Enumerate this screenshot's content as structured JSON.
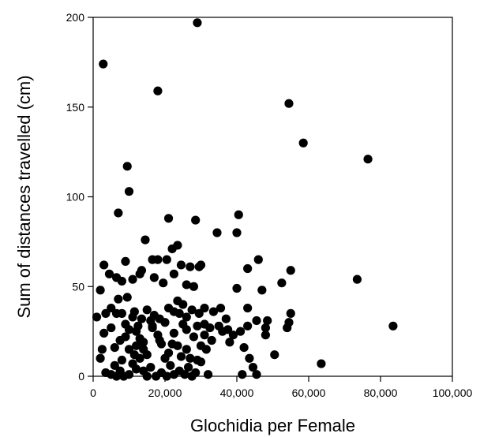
{
  "chart_data": {
    "type": "scatter",
    "title": "",
    "xlabel": "Glochidia per Female",
    "ylabel": "Sum of distances travelled (cm)",
    "xlim": [
      0,
      100000
    ],
    "ylim": [
      0,
      200
    ],
    "x_ticks": [
      0,
      20000,
      40000,
      60000,
      80000,
      100000
    ],
    "x_tick_labels": [
      "0",
      "20,000",
      "40,000",
      "60,000",
      "80,000",
      "100,000"
    ],
    "y_ticks": [
      0,
      50,
      100,
      150,
      200
    ],
    "y_tick_labels": [
      "0",
      "50",
      "100",
      "150",
      "200"
    ],
    "grid": false,
    "legend": "none",
    "marker_color": "#000000",
    "points": [
      [
        2800,
        174
      ],
      [
        29000,
        197
      ],
      [
        18000,
        159
      ],
      [
        54500,
        152
      ],
      [
        58500,
        130
      ],
      [
        76500,
        121
      ],
      [
        9500,
        117
      ],
      [
        10000,
        103
      ],
      [
        7000,
        91
      ],
      [
        21000,
        88
      ],
      [
        28500,
        87
      ],
      [
        40500,
        90
      ],
      [
        40000,
        80
      ],
      [
        34500,
        80
      ],
      [
        14500,
        76
      ],
      [
        23500,
        73
      ],
      [
        22000,
        71
      ],
      [
        20500,
        65
      ],
      [
        18000,
        65
      ],
      [
        16500,
        65
      ],
      [
        24500,
        62
      ],
      [
        27000,
        61
      ],
      [
        30000,
        62
      ],
      [
        29500,
        61
      ],
      [
        13500,
        59
      ],
      [
        13000,
        57
      ],
      [
        17000,
        55
      ],
      [
        22500,
        57
      ],
      [
        19500,
        52
      ],
      [
        26000,
        51
      ],
      [
        28000,
        50
      ],
      [
        3000,
        62
      ],
      [
        2000,
        48
      ],
      [
        4500,
        57
      ],
      [
        6500,
        55
      ],
      [
        8000,
        53
      ],
      [
        9000,
        64
      ],
      [
        11000,
        54
      ],
      [
        9500,
        44
      ],
      [
        7000,
        43
      ],
      [
        5000,
        38
      ],
      [
        3500,
        35
      ],
      [
        1000,
        33
      ],
      [
        6500,
        35
      ],
      [
        8000,
        35
      ],
      [
        11500,
        36
      ],
      [
        11000,
        33
      ],
      [
        13500,
        32
      ],
      [
        15000,
        37
      ],
      [
        17000,
        34
      ],
      [
        18500,
        32
      ],
      [
        16500,
        28
      ],
      [
        21000,
        38
      ],
      [
        22500,
        36
      ],
      [
        24000,
        35
      ],
      [
        26000,
        33
      ],
      [
        25000,
        40
      ],
      [
        23500,
        42
      ],
      [
        27500,
        37
      ],
      [
        29500,
        35
      ],
      [
        31000,
        38
      ],
      [
        33500,
        36
      ],
      [
        35500,
        38
      ],
      [
        37000,
        32
      ],
      [
        39000,
        23
      ],
      [
        40000,
        49
      ],
      [
        43000,
        60
      ],
      [
        46000,
        65
      ],
      [
        47000,
        48
      ],
      [
        52500,
        52
      ],
      [
        55000,
        59
      ],
      [
        55000,
        35
      ],
      [
        54500,
        30
      ],
      [
        54000,
        27
      ],
      [
        43000,
        38
      ],
      [
        45500,
        31
      ],
      [
        48500,
        31
      ],
      [
        48000,
        27
      ],
      [
        48000,
        23
      ],
      [
        43000,
        28
      ],
      [
        42000,
        16
      ],
      [
        43500,
        10
      ],
      [
        44500,
        5
      ],
      [
        41500,
        1
      ],
      [
        45500,
        1
      ],
      [
        41000,
        25
      ],
      [
        38000,
        19
      ],
      [
        36000,
        25
      ],
      [
        32500,
        27
      ],
      [
        31000,
        23
      ],
      [
        30000,
        17
      ],
      [
        31500,
        15
      ],
      [
        29000,
        9
      ],
      [
        27000,
        10
      ],
      [
        26000,
        15
      ],
      [
        24500,
        11
      ],
      [
        23500,
        17
      ],
      [
        22000,
        18
      ],
      [
        21000,
        13
      ],
      [
        20000,
        10
      ],
      [
        19000,
        18
      ],
      [
        18000,
        23
      ],
      [
        16500,
        27
      ],
      [
        15000,
        12
      ],
      [
        14000,
        19
      ],
      [
        13000,
        21
      ],
      [
        12000,
        25
      ],
      [
        10000,
        26
      ],
      [
        9000,
        22
      ],
      [
        7500,
        20
      ],
      [
        6000,
        16
      ],
      [
        5000,
        27
      ],
      [
        3000,
        24
      ],
      [
        2500,
        15
      ],
      [
        2000,
        10
      ],
      [
        3500,
        2
      ],
      [
        5000,
        1
      ],
      [
        6500,
        0
      ],
      [
        7500,
        3
      ],
      [
        8500,
        0
      ],
      [
        10000,
        1
      ],
      [
        11000,
        7
      ],
      [
        12000,
        4
      ],
      [
        13000,
        10
      ],
      [
        14000,
        3
      ],
      [
        15000,
        0
      ],
      [
        16000,
        5
      ],
      [
        17500,
        0
      ],
      [
        19000,
        2
      ],
      [
        20500,
        0
      ],
      [
        21500,
        6
      ],
      [
        22500,
        1
      ],
      [
        24000,
        3
      ],
      [
        25500,
        1
      ],
      [
        26500,
        5
      ],
      [
        27500,
        0
      ],
      [
        28500,
        2
      ],
      [
        30000,
        8
      ],
      [
        32000,
        1
      ],
      [
        25000,
        29
      ],
      [
        20000,
        30
      ],
      [
        16000,
        31
      ],
      [
        12500,
        28
      ],
      [
        9000,
        29
      ],
      [
        26000,
        26
      ],
      [
        28000,
        22
      ],
      [
        31000,
        29
      ],
      [
        35000,
        28
      ],
      [
        37500,
        26
      ],
      [
        22500,
        24
      ],
      [
        18500,
        20
      ],
      [
        14000,
        15
      ],
      [
        11500,
        12
      ],
      [
        8000,
        9
      ],
      [
        10000,
        15
      ],
      [
        12000,
        17
      ],
      [
        6000,
        6
      ],
      [
        29000,
        28
      ],
      [
        33000,
        20
      ],
      [
        50500,
        12
      ],
      [
        63500,
        7
      ],
      [
        73500,
        54
      ],
      [
        83500,
        28
      ]
    ]
  }
}
